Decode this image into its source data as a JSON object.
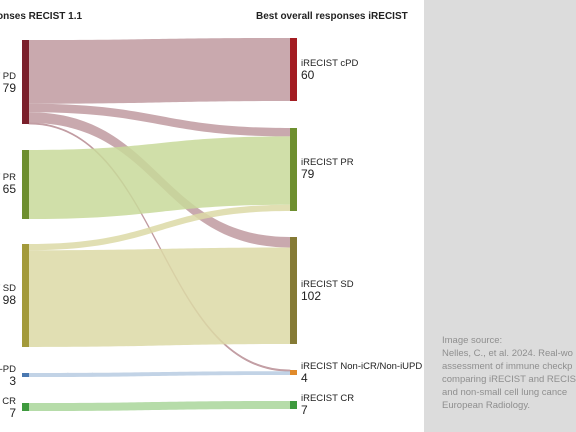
{
  "left_title": "onses RECIST 1.1",
  "right_title": "Best overall responses iRECIST",
  "left_nodes": [
    {
      "label": "T PD",
      "value": "79",
      "color": "#7a1f2b"
    },
    {
      "label": "T PR",
      "value": "65",
      "color": "#6e8f2f"
    },
    {
      "label": "T SD",
      "value": "98",
      "color": "#a39a3a"
    },
    {
      "label": "n-PD",
      "value": "3",
      "color": "#4a78b0"
    },
    {
      "label": "T CR",
      "value": "7",
      "color": "#3e9a3e"
    }
  ],
  "right_nodes": [
    {
      "label": "iRECIST cPD",
      "value": "60",
      "color": "#a31d22"
    },
    {
      "label": "iRECIST PR",
      "value": "79",
      "color": "#6e8f2f"
    },
    {
      "label": "iRECIST SD",
      "value": "102",
      "color": "#857a35"
    },
    {
      "label": "iRECIST Non-iCR/Non-iUPD",
      "value": "4",
      "color": "#e08a2a"
    },
    {
      "label": "iRECIST CR",
      "value": "7",
      "color": "#3e9a3e"
    }
  ],
  "flows": [
    {
      "from": 0,
      "to": 0,
      "value": 60,
      "color": "#c09aa0"
    },
    {
      "from": 0,
      "to": 1,
      "value": 8,
      "color": "#c09aa0"
    },
    {
      "from": 0,
      "to": 2,
      "value": 10,
      "color": "#c09aa0"
    },
    {
      "from": 0,
      "to": 3,
      "value": 1,
      "color": "#c09aa0"
    },
    {
      "from": 1,
      "to": 1,
      "value": 65,
      "color": "#c8d99a"
    },
    {
      "from": 2,
      "to": 1,
      "value": 6,
      "color": "#dcd9a6"
    },
    {
      "from": 2,
      "to": 2,
      "value": 92,
      "color": "#dcd9a6"
    },
    {
      "from": 3,
      "to": 3,
      "value": 3,
      "color": "#b7cbe2"
    },
    {
      "from": 4,
      "to": 4,
      "value": 7,
      "color": "#a9d69a"
    }
  ],
  "source": {
    "heading": "Image source:",
    "lines": [
      "Nelles, C., et al. 2024. Real-wo",
      "assessment of immune checkp",
      "comparing iRECIST and RECIS",
      "and non-small cell lung cance",
      "European Radiology."
    ]
  }
}
